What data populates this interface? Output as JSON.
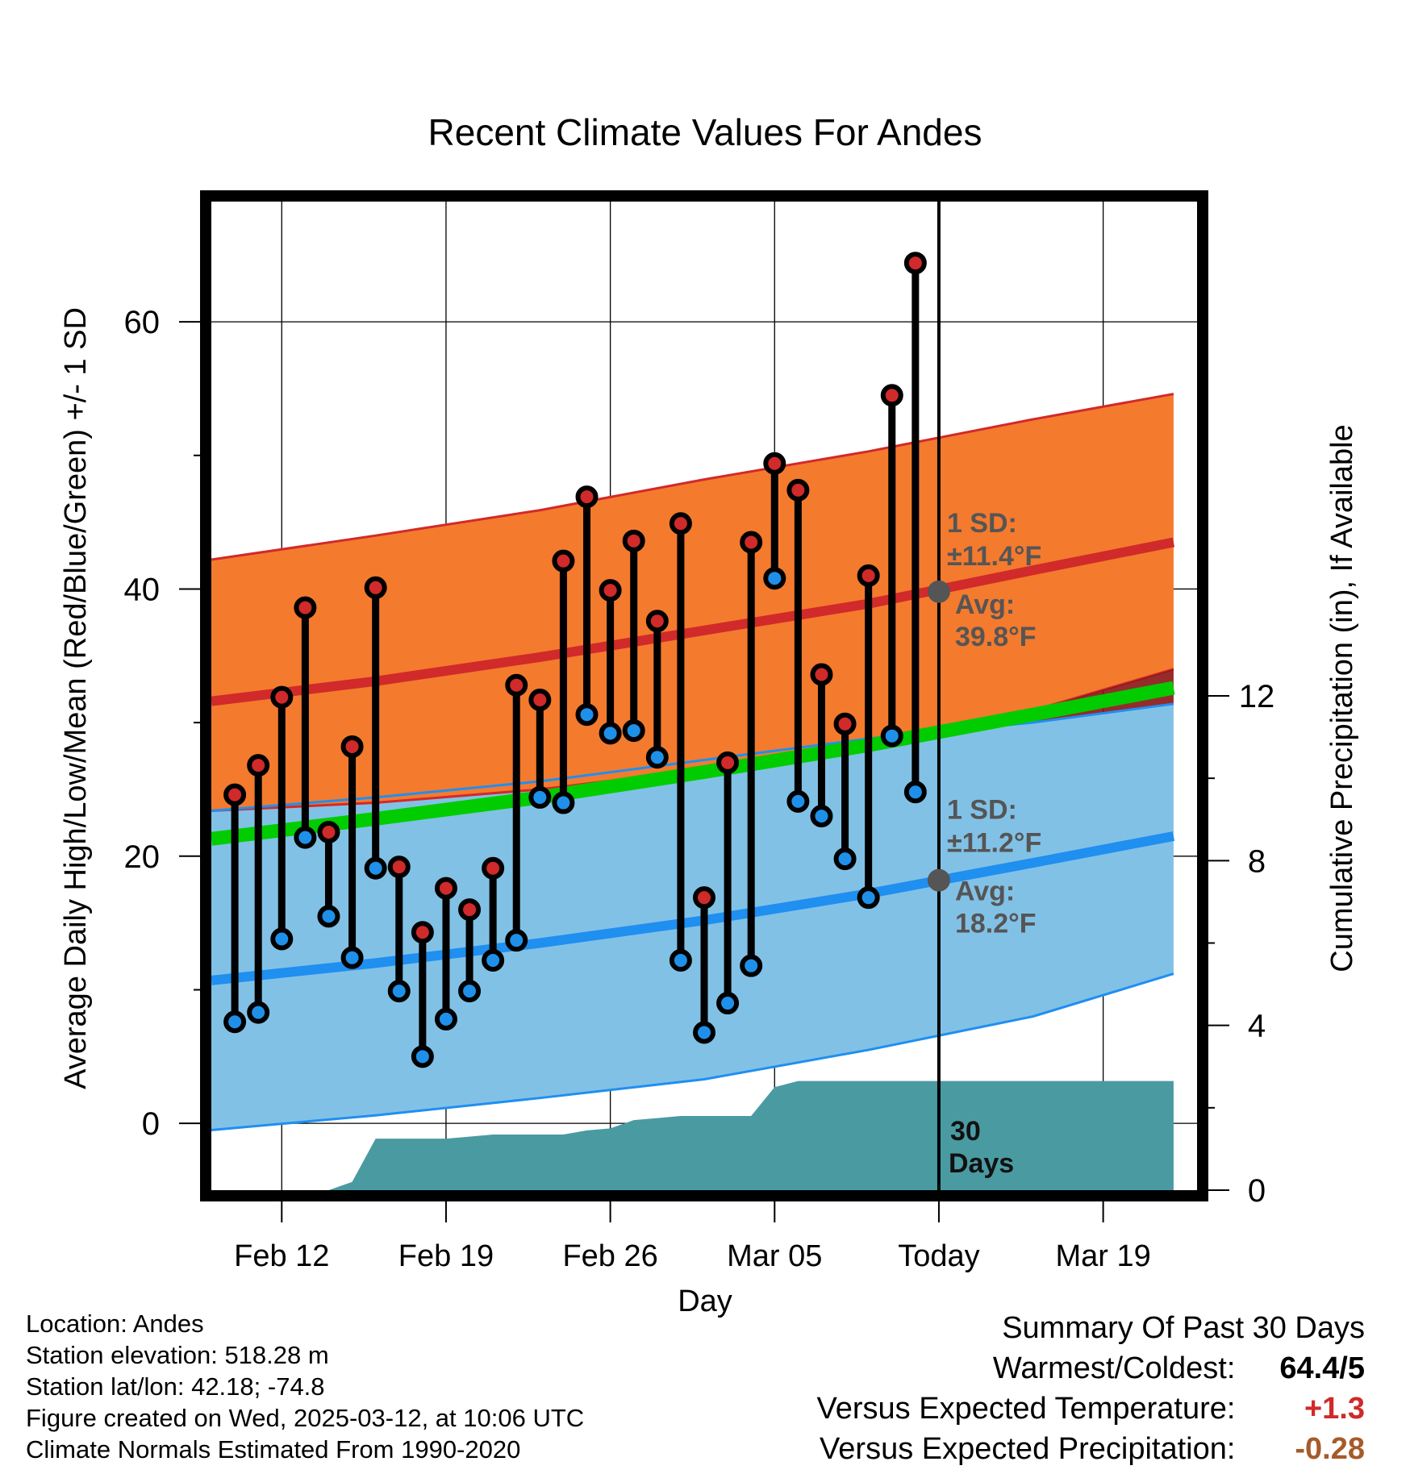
{
  "chart_data": {
    "type": "line",
    "title": "Recent Climate Values For Andes",
    "xlabel": "Day",
    "ylabel": "Average Daily High/Low/Mean (Red/Blue/Green) +/- 1 SD",
    "y2label": "Cumulative Precipitation (in), If Available",
    "x_range": [
      "2025-02-09",
      "2025-03-23"
    ],
    "ylim": [
      -5,
      69
    ],
    "y2lim": [
      0,
      24
    ],
    "yticks": [
      0,
      20,
      40,
      60
    ],
    "y2ticks": [
      0,
      4,
      8,
      12
    ],
    "xtick_labels": [
      "Feb 12",
      "Feb 19",
      "Feb 26",
      "Mar 05",
      "Today",
      "Mar 19"
    ],
    "xtick_dates": [
      "2025-02-12",
      "2025-02-19",
      "2025-02-26",
      "2025-03-05",
      "2025-03-12",
      "2025-03-19"
    ],
    "grid": true,
    "colors": {
      "high_band": "#f47a2e",
      "high_mean": "#d12a2a",
      "high_band_edge": "#d12a2a",
      "low_band": "#82c1e6",
      "low_mean": "#1f8ff0",
      "low_band_edge": "#1f8ff0",
      "mean": "#00cc00",
      "overlap": "#8b1414",
      "precip": "#4a9aa2",
      "high_dot": "#d02a2a",
      "low_dot": "#1f90ea",
      "today_marker": "#555555",
      "annotation": "#555555"
    },
    "normals": {
      "dates": [
        "2025-02-09",
        "2025-02-16",
        "2025-02-23",
        "2025-03-02",
        "2025-03-09",
        "2025-03-16",
        "2025-03-22"
      ],
      "high_mean": [
        31.6,
        33.1,
        34.9,
        36.9,
        38.9,
        41.4,
        43.5
      ],
      "high_upper": [
        42.2,
        44.0,
        45.9,
        48.2,
        50.3,
        52.7,
        54.6
      ],
      "high_lower": [
        23.4,
        24.0,
        25.0,
        26.5,
        28.2,
        30.9,
        34.0
      ],
      "low_mean": [
        10.7,
        12.0,
        13.5,
        15.2,
        17.2,
        19.5,
        21.5
      ],
      "low_upper": [
        23.4,
        24.4,
        25.6,
        27.2,
        28.8,
        30.0,
        31.4
      ],
      "low_lower": [
        -0.5,
        0.6,
        1.9,
        3.3,
        5.5,
        8.0,
        11.2
      ],
      "mean": [
        21.3,
        22.8,
        24.4,
        26.3,
        28.3,
        30.6,
        32.6
      ]
    },
    "series": [
      {
        "name": "High",
        "dates": [
          "2025-02-10",
          "2025-02-11",
          "2025-02-12",
          "2025-02-13",
          "2025-02-14",
          "2025-02-15",
          "2025-02-16",
          "2025-02-17",
          "2025-02-18",
          "2025-02-19",
          "2025-02-20",
          "2025-02-21",
          "2025-02-22",
          "2025-02-23",
          "2025-02-24",
          "2025-02-25",
          "2025-02-26",
          "2025-02-27",
          "2025-02-28",
          "2025-03-01",
          "2025-03-02",
          "2025-03-03",
          "2025-03-04",
          "2025-03-05",
          "2025-03-06",
          "2025-03-07",
          "2025-03-08",
          "2025-03-09",
          "2025-03-10",
          "2025-03-11"
        ],
        "values": [
          24.6,
          26.8,
          31.9,
          38.6,
          21.8,
          28.2,
          40.1,
          19.2,
          14.3,
          17.6,
          16.0,
          19.1,
          32.8,
          31.7,
          42.1,
          46.9,
          39.9,
          43.6,
          37.6,
          44.9,
          16.9,
          27.0,
          43.5,
          49.4,
          47.4,
          33.6,
          29.9,
          41.0,
          54.5,
          64.4
        ]
      },
      {
        "name": "Low",
        "dates": [
          "2025-02-10",
          "2025-02-11",
          "2025-02-12",
          "2025-02-13",
          "2025-02-14",
          "2025-02-15",
          "2025-02-16",
          "2025-02-17",
          "2025-02-18",
          "2025-02-19",
          "2025-02-20",
          "2025-02-21",
          "2025-02-22",
          "2025-02-23",
          "2025-02-24",
          "2025-02-25",
          "2025-02-26",
          "2025-02-27",
          "2025-02-28",
          "2025-03-01",
          "2025-03-02",
          "2025-03-03",
          "2025-03-04",
          "2025-03-05",
          "2025-03-06",
          "2025-03-07",
          "2025-03-08",
          "2025-03-09",
          "2025-03-10",
          "2025-03-11"
        ],
        "values": [
          7.6,
          8.3,
          13.8,
          21.4,
          15.5,
          12.4,
          19.1,
          9.9,
          5.0,
          7.8,
          9.9,
          12.2,
          13.7,
          24.4,
          24.0,
          30.6,
          29.2,
          29.4,
          27.4,
          12.2,
          6.8,
          9.0,
          11.8,
          40.8,
          24.1,
          23.0,
          19.8,
          16.9,
          29.0,
          24.8
        ]
      }
    ],
    "precipitation": {
      "dates": [
        "2025-02-09",
        "2025-02-11",
        "2025-02-12",
        "2025-02-13",
        "2025-02-14",
        "2025-02-15",
        "2025-02-16",
        "2025-02-17",
        "2025-02-18",
        "2025-02-19",
        "2025-02-20",
        "2025-02-21",
        "2025-02-22",
        "2025-02-23",
        "2025-02-24",
        "2025-02-25",
        "2025-02-26",
        "2025-02-27",
        "2025-02-28",
        "2025-03-01",
        "2025-03-02",
        "2025-03-03",
        "2025-03-04",
        "2025-03-05",
        "2025-03-06",
        "2025-03-07",
        "2025-03-08",
        "2025-03-09",
        "2025-03-10",
        "2025-03-11",
        "2025-03-12",
        "2025-03-22"
      ],
      "values": [
        0,
        0,
        0,
        0,
        0,
        0.2,
        1.25,
        1.25,
        1.25,
        1.25,
        1.3,
        1.35,
        1.35,
        1.35,
        1.35,
        1.45,
        1.5,
        1.7,
        1.75,
        1.8,
        1.8,
        1.8,
        1.8,
        2.5,
        2.65,
        2.65,
        2.65,
        2.65,
        2.65,
        2.65,
        2.65,
        2.65
      ]
    },
    "annotations": {
      "days_label": [
        "30",
        "Days"
      ],
      "high_sd": "1 SD:",
      "high_sd_value": "±11.4°F",
      "high_avg": "Avg:",
      "high_avg_value": "39.8°F",
      "high_avg_num": 39.8,
      "low_sd": "1 SD:",
      "low_sd_value": "±11.2°F",
      "low_avg": "Avg:",
      "low_avg_value": "18.2°F",
      "low_avg_num": 18.2,
      "today_date": "2025-03-12"
    }
  },
  "footer": {
    "location": "Location: Andes",
    "elevation": "Station elevation: 518.28 m",
    "latlon": "Station lat/lon: 42.18; -74.8",
    "created": "Figure created on Wed, 2025-03-12, at 10:06 UTC",
    "normals": "Climate Normals Estimated From 1990-2020"
  },
  "summary": {
    "title": "Summary Of Past 30 Days",
    "warmest_label": "Warmest/Coldest:",
    "warmest_value": "64.4/5",
    "temp_label": "Versus Expected Temperature:",
    "temp_value": "+1.3",
    "temp_color": "#d02a2a",
    "precip_label": "Versus Expected Precipitation:",
    "precip_value": "-0.28",
    "precip_color": "#a65b2a"
  }
}
